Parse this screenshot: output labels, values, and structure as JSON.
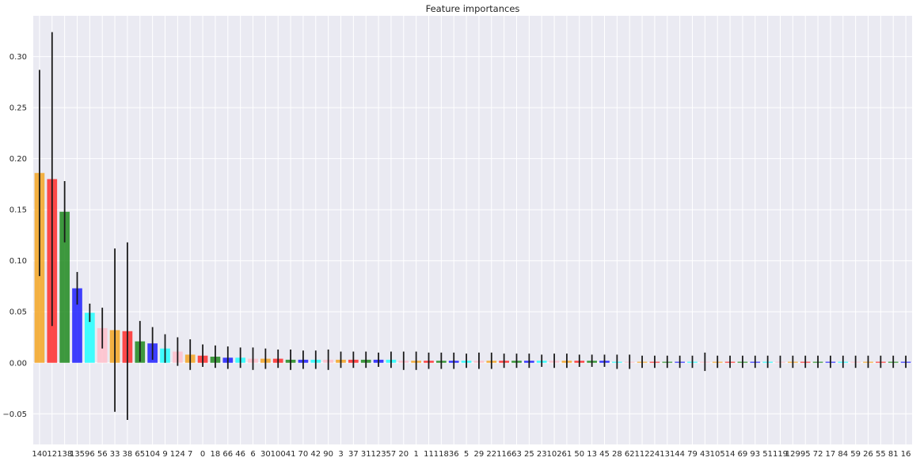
{
  "chart_data": {
    "type": "bar",
    "title": "Feature importances",
    "xlabel": "",
    "ylabel": "",
    "ylim": [
      -0.08,
      0.34
    ],
    "yticks": [
      -0.05,
      0.0,
      0.05,
      0.1,
      0.15,
      0.2,
      0.25,
      0.3
    ],
    "ytick_labels": [
      "−0.05",
      "0.00",
      "0.05",
      "0.10",
      "0.15",
      "0.20",
      "0.25",
      "0.30"
    ],
    "grid": true,
    "legend": "none",
    "colors": {
      "background": "#eaeaf2",
      "grid": "#ffffff",
      "errorbar": "#1a1a1a",
      "text": "#262626",
      "orange": "#f5a623",
      "red": "#ff2b2b",
      "green": "#1f8a1f",
      "blue": "#1f1fff",
      "cyan": "#22ffff",
      "pink": "#ffc0cb"
    },
    "color_cycle": [
      "orange",
      "red",
      "green",
      "blue",
      "cyan",
      "pink"
    ],
    "categories": [
      "140",
      "12",
      "138",
      "135",
      "96",
      "56",
      "33",
      "38",
      "65",
      "104",
      "9",
      "124",
      "7",
      "0",
      "18",
      "66",
      "46",
      "6",
      "30",
      "100",
      "41",
      "70",
      "42",
      "90",
      "3",
      "37",
      "31",
      "123",
      "57",
      "20",
      "1",
      "11",
      "118",
      "36",
      "5",
      "29",
      "22",
      "116",
      "63",
      "25",
      "23",
      "102",
      "61",
      "50",
      "13",
      "45",
      "28",
      "62",
      "112",
      "24",
      "131",
      "44",
      "79",
      "43",
      "105",
      "14",
      "69",
      "93",
      "51",
      "119",
      "129",
      "95",
      "72",
      "17",
      "84",
      "59",
      "26",
      "55",
      "81",
      "16"
    ],
    "values": [
      0.186,
      0.18,
      0.148,
      0.073,
      0.049,
      0.034,
      0.032,
      0.031,
      0.021,
      0.019,
      0.014,
      0.011,
      0.008,
      0.007,
      0.006,
      0.005,
      0.005,
      0.004,
      0.004,
      0.004,
      0.003,
      0.003,
      0.003,
      0.003,
      0.003,
      0.003,
      0.003,
      0.003,
      0.003,
      0.002,
      0.002,
      0.002,
      0.002,
      0.002,
      0.002,
      0.002,
      0.002,
      0.002,
      0.002,
      0.002,
      0.002,
      0.002,
      0.002,
      0.002,
      0.002,
      0.002,
      0.001,
      0.001,
      0.001,
      0.001,
      0.001,
      0.001,
      0.001,
      0.001,
      0.001,
      0.001,
      0.001,
      0.001,
      0.001,
      0.001,
      0.001,
      0.001,
      0.001,
      0.001,
      0.001,
      0.001,
      0.001,
      0.001,
      0.001,
      0.001
    ],
    "errors": [
      0.101,
      0.144,
      0.03,
      0.016,
      0.009,
      0.02,
      0.08,
      0.087,
      0.02,
      0.016,
      0.014,
      0.014,
      0.015,
      0.011,
      0.011,
      0.011,
      0.01,
      0.011,
      0.01,
      0.009,
      0.01,
      0.009,
      0.009,
      0.01,
      0.008,
      0.008,
      0.008,
      0.007,
      0.008,
      0.009,
      0.009,
      0.008,
      0.008,
      0.008,
      0.007,
      0.008,
      0.008,
      0.007,
      0.007,
      0.007,
      0.006,
      0.007,
      0.007,
      0.006,
      0.006,
      0.006,
      0.007,
      0.007,
      0.006,
      0.006,
      0.006,
      0.006,
      0.006,
      0.009,
      0.006,
      0.006,
      0.006,
      0.006,
      0.006,
      0.006,
      0.006,
      0.006,
      0.006,
      0.006,
      0.006,
      0.006,
      0.006,
      0.006,
      0.006,
      0.006
    ]
  }
}
